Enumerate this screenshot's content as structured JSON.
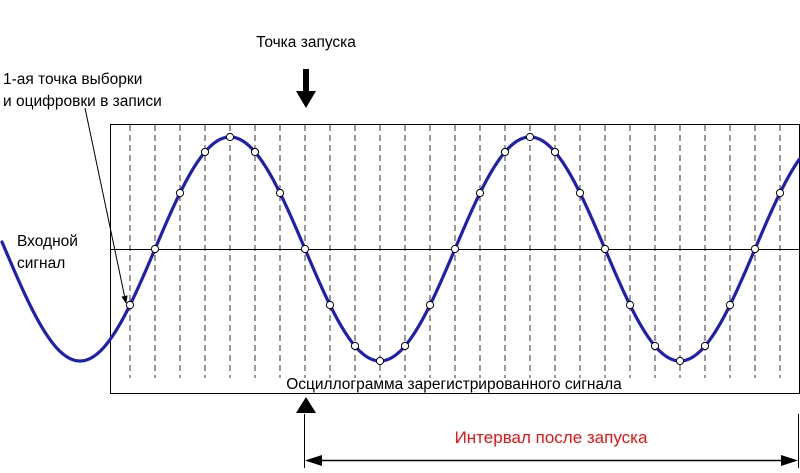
{
  "labels": {
    "trigger_point": "Точка запуска",
    "first_sample_line1": "1-ая точка выборки",
    "first_sample_line2": "и оцифровки в записи",
    "input_signal_line1": "Входной",
    "input_signal_line2": "сигнал",
    "waveform_caption": "Осциллограмма зарегистрированного сигнала",
    "post_trigger_interval": "Интервал после запуска"
  },
  "colors": {
    "signal": "#1f1fb4",
    "interval_text": "#ee1111",
    "frame": "#000000"
  },
  "signal": {
    "visible_periods": 2.33,
    "sample_points_per_period": 12
  }
}
